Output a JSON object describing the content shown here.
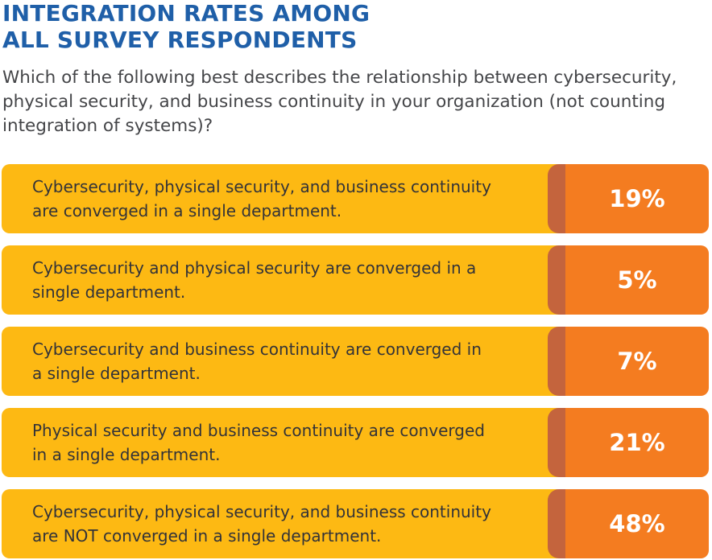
{
  "title_lines": [
    "INTEGRATION RATES AMONG",
    "ALL SURVEY RESPONDENTS"
  ],
  "subtitle_lines": [
    "Which of the following best describes the relationship between cybersecurity,",
    "physical security, and business continuity in your organization (not counting",
    "integration of systems)?"
  ],
  "colors": {
    "title": "#1f5fa8",
    "label_bar": "#fdb913",
    "divider": "#c4643d",
    "value_box": "#f47c20",
    "value_text": "#ffffff",
    "body_text": "#333338"
  },
  "chart_data": {
    "type": "table",
    "title": "INTEGRATION RATES AMONG ALL SURVEY RESPONDENTS",
    "subtitle": "Which of the following best describes the relationship between cybersecurity, physical security, and business continuity in your organization (not counting integration of systems)?",
    "unit": "%",
    "categories": [
      "Cybersecurity, physical security, and business continuity are converged in a single department.",
      "Cybersecurity and physical security are converged in a single department.",
      "Cybersecurity and business continuity are converged in a single department.",
      "Physical security and business continuity are converged in a single department.",
      "Cybersecurity, physical security, and business continuity are NOT converged in a single department."
    ],
    "values": [
      19,
      5,
      7,
      21,
      48
    ],
    "rows": [
      {
        "label_lines": [
          "Cybersecurity, physical security, and business continuity",
          "are converged in a single department."
        ],
        "value_label": "19%"
      },
      {
        "label_lines": [
          "Cybersecurity and physical security are converged in a",
          "single department."
        ],
        "value_label": "5%"
      },
      {
        "label_lines": [
          "Cybersecurity and business continuity are converged in",
          "a single department."
        ],
        "value_label": "7%"
      },
      {
        "label_lines": [
          "Physical security and business continuity are converged",
          "in a single department."
        ],
        "value_label": "21%"
      },
      {
        "label_lines": [
          "Cybersecurity, physical security, and business continuity",
          "are NOT converged in a single department."
        ],
        "value_label": "48%"
      }
    ]
  }
}
